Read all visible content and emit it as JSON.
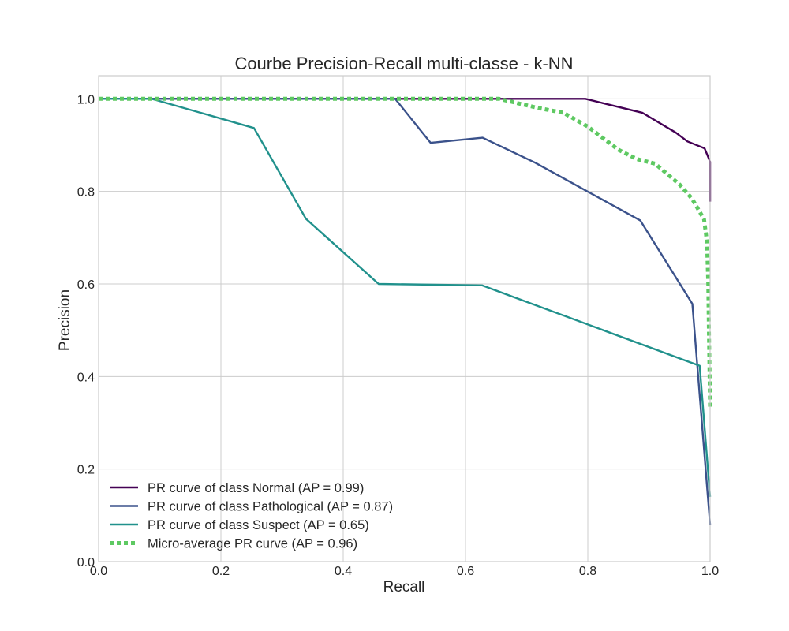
{
  "chart_data": {
    "type": "line",
    "title": "Courbe Precision-Recall multi-classe - k-NN",
    "xlabel": "Recall",
    "ylabel": "Precision",
    "xlim": [
      0.0,
      1.0
    ],
    "ylim": [
      0.0,
      1.05
    ],
    "xticks": [
      "0.0",
      "0.2",
      "0.4",
      "0.6",
      "0.8",
      "1.0"
    ],
    "yticks": [
      "0.0",
      "0.2",
      "0.4",
      "0.6",
      "0.8",
      "1.0"
    ],
    "grid": true,
    "legend_position": "lower-left",
    "series": [
      {
        "name": "PR curve of class Normal (AP = 0.99)",
        "color": "#440154",
        "style": "solid",
        "points": [
          [
            0.0,
            1.0
          ],
          [
            0.796,
            1.0
          ],
          [
            0.889,
            0.97
          ],
          [
            0.944,
            0.927
          ],
          [
            0.963,
            0.908
          ],
          [
            0.991,
            0.893
          ],
          [
            1.0,
            0.864
          ],
          [
            1.0,
            0.778
          ]
        ]
      },
      {
        "name": "PR curve of class Pathological (AP = 0.87)",
        "color": "#3b528b",
        "style": "solid",
        "points": [
          [
            0.0,
            1.0
          ],
          [
            0.485,
            1.0
          ],
          [
            0.543,
            0.905
          ],
          [
            0.628,
            0.916
          ],
          [
            0.714,
            0.862
          ],
          [
            0.886,
            0.737
          ],
          [
            0.971,
            0.557
          ],
          [
            1.0,
            0.08
          ]
        ]
      },
      {
        "name": "PR curve of class Suspect (AP = 0.65)",
        "color": "#21918c",
        "style": "solid",
        "points": [
          [
            0.0,
            1.0
          ],
          [
            0.087,
            1.0
          ],
          [
            0.254,
            0.937
          ],
          [
            0.339,
            0.741
          ],
          [
            0.458,
            0.6
          ],
          [
            0.627,
            0.597
          ],
          [
            0.983,
            0.423
          ],
          [
            1.0,
            0.14
          ]
        ]
      },
      {
        "name": "Micro-average PR curve (AP = 0.96)",
        "color": "#5ec962",
        "style": "dotted",
        "points": [
          [
            0.0,
            1.0
          ],
          [
            0.655,
            1.0
          ],
          [
            0.72,
            0.98
          ],
          [
            0.76,
            0.97
          ],
          [
            0.8,
            0.94
          ],
          [
            0.85,
            0.89
          ],
          [
            0.88,
            0.87
          ],
          [
            0.91,
            0.86
          ],
          [
            0.95,
            0.815
          ],
          [
            0.97,
            0.785
          ],
          [
            0.99,
            0.74
          ],
          [
            0.995,
            0.69
          ],
          [
            0.997,
            0.6
          ],
          [
            0.998,
            0.5
          ],
          [
            1.0,
            0.33
          ]
        ]
      }
    ]
  }
}
